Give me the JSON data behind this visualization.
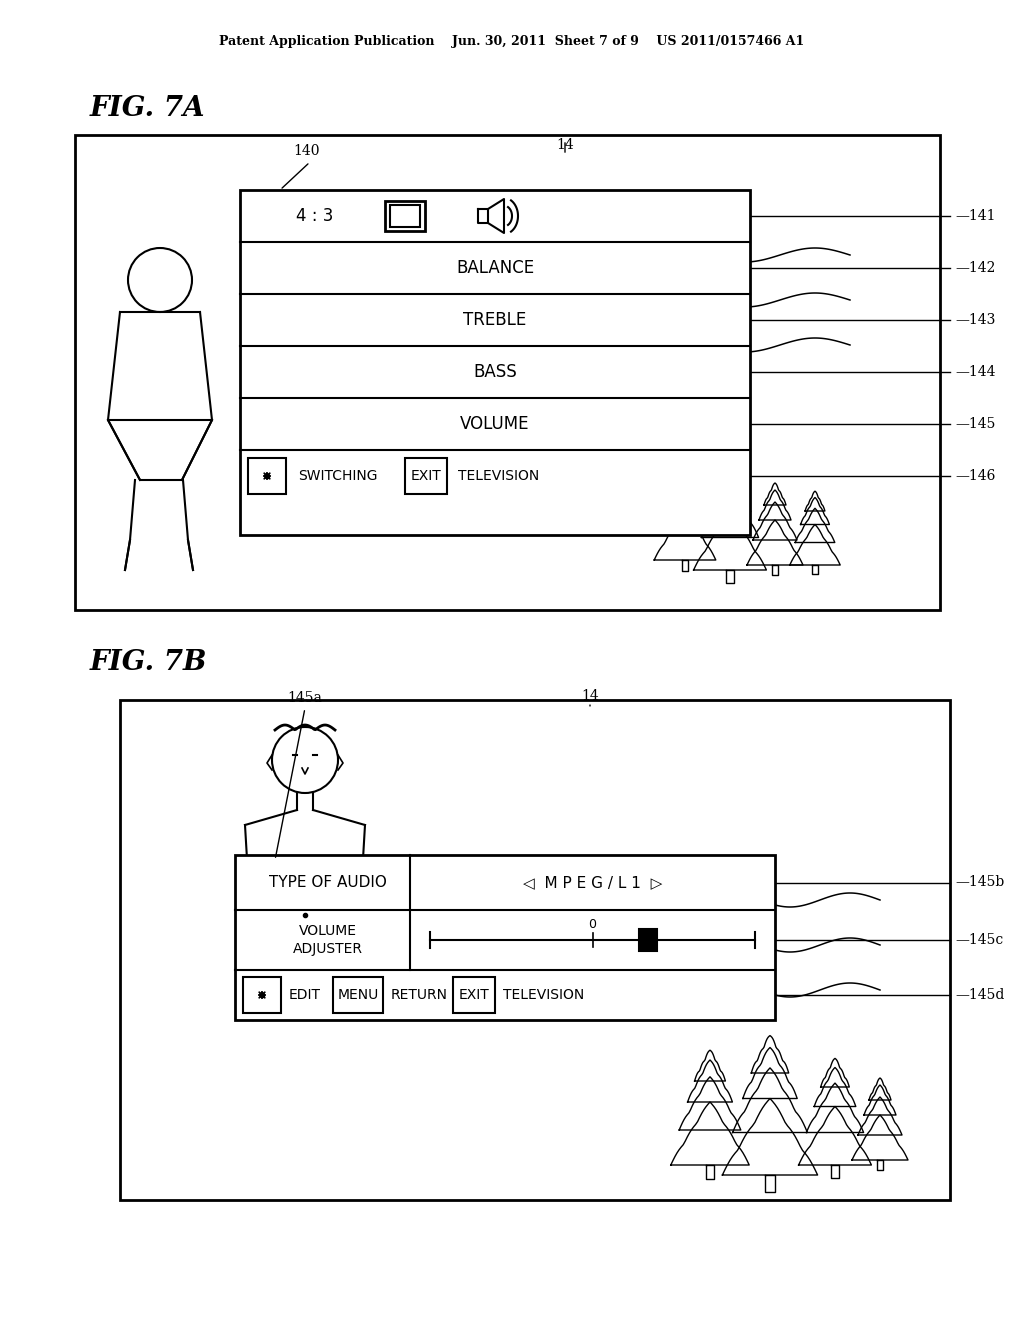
{
  "bg_color": "#ffffff",
  "header_text": "Patent Application Publication    Jun. 30, 2011  Sheet 7 of 9    US 2011/0157466 A1",
  "fig7a_label": "FIG. 7A",
  "fig7b_label": "FIG. 7B",
  "label_140": "140",
  "label_14a": "14",
  "label_141": "141",
  "label_142": "142",
  "label_143": "143",
  "label_144": "144",
  "label_145": "145",
  "label_146": "146",
  "label_145a": "145a",
  "label_14b": "14",
  "label_145b": "145b",
  "label_145c": "145c",
  "label_145d": "145d"
}
